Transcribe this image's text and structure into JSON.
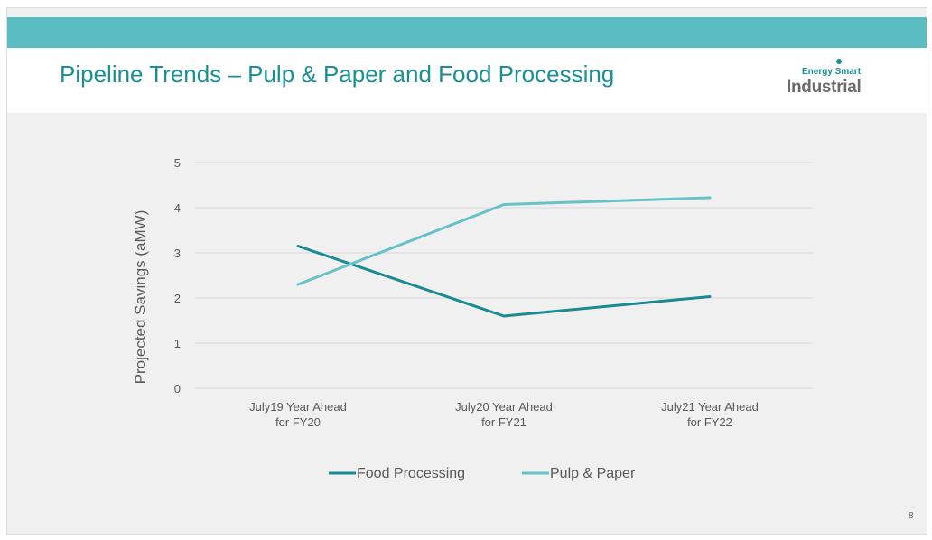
{
  "slide": {
    "title": "Pipeline Trends – Pulp & Paper and Food Processing",
    "logo": {
      "line1": "Energy Smart",
      "line2": "Industrial"
    },
    "page_number": "8",
    "colors": {
      "top_bar": "#5bbcc2",
      "title": "#1a8f96",
      "background": "#f0f0f0"
    }
  },
  "chart_data": {
    "type": "line",
    "ylabel": "Projected Savings (aMW)",
    "xlabel": "",
    "ylim": [
      0,
      5
    ],
    "yticks": [
      0,
      1,
      2,
      3,
      4,
      5
    ],
    "categories": [
      [
        "July19 Year Ahead",
        "for FY20"
      ],
      [
        "July20 Year Ahead",
        "for FY21"
      ],
      [
        "July21 Year Ahead",
        "for FY22"
      ]
    ],
    "series": [
      {
        "name": "Food Processing",
        "values": [
          3.15,
          1.6,
          2.03
        ],
        "color": "#1a8a92"
      },
      {
        "name": "Pulp & Paper",
        "values": [
          2.3,
          4.07,
          4.22
        ],
        "color": "#66c2c7"
      }
    ],
    "grid": true,
    "legend": "bottom"
  }
}
